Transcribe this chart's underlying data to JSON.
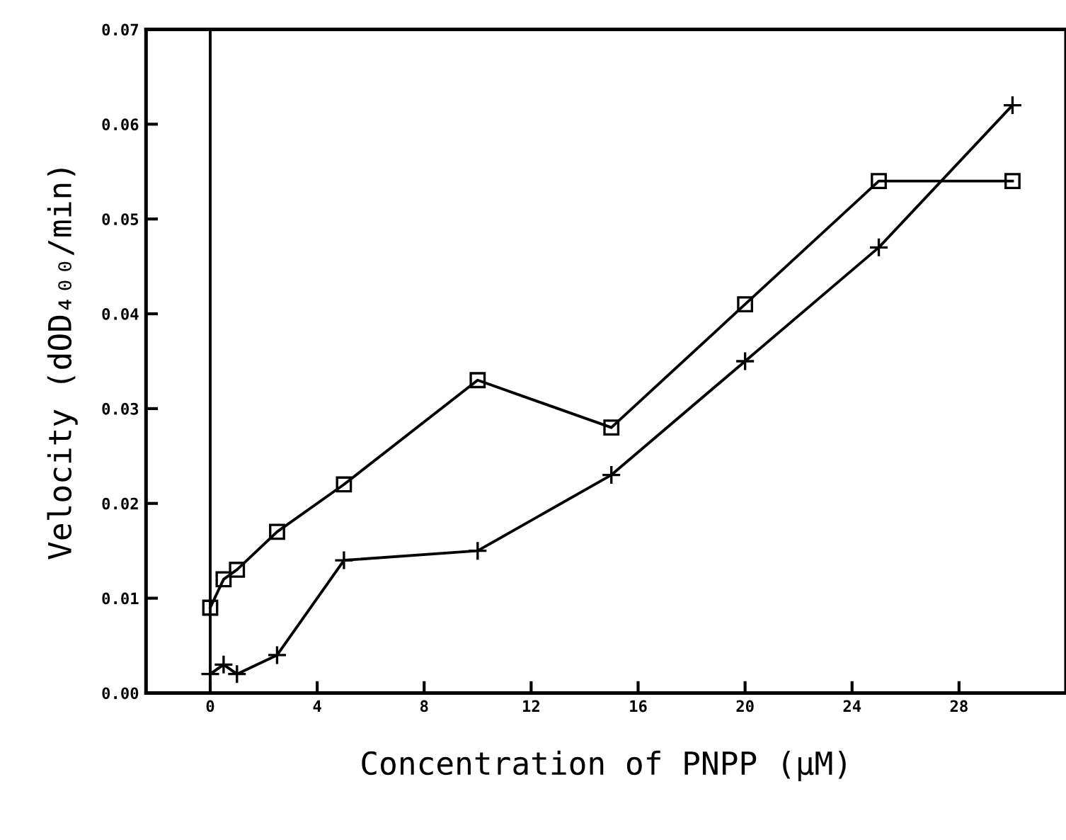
{
  "chart_data": {
    "type": "line",
    "xlabel": "Concentration of PNPP (µM)",
    "ylabel": "Velocity (dOD₄₀₀/min)",
    "x": [
      0,
      0.5,
      1,
      2.5,
      5,
      10,
      15,
      20,
      25,
      30
    ],
    "series": [
      {
        "color": "#000000",
        "marker": "square",
        "values": [
          0.009,
          0.012,
          0.013,
          0.017,
          0.022,
          0.033,
          0.028,
          0.041,
          0.054,
          0.054
        ]
      },
      {
        "color": "#000000",
        "marker": "cross",
        "values": [
          0.002,
          0.003,
          0.002,
          0.004,
          0.014,
          0.015,
          0.023,
          0.035,
          0.047,
          0.062
        ]
      }
    ],
    "xlim": [
      -2.4,
      32
    ],
    "xticks": [
      0,
      4,
      8,
      12,
      16,
      20,
      24,
      28
    ],
    "ylim": [
      0,
      0.07
    ],
    "yticks": [
      {
        "value": 0,
        "label": "0.00"
      },
      {
        "value": 0.01,
        "label": "0.01"
      },
      {
        "value": 0.02,
        "label": "0.02"
      },
      {
        "value": 0.03,
        "label": "0.03"
      },
      {
        "value": 0.04,
        "label": "0.04"
      },
      {
        "value": 0.05,
        "label": "0.05"
      },
      {
        "value": 0.06,
        "label": "0.06"
      },
      {
        "value": 0.07,
        "label": "0.07"
      }
    ],
    "ref_lines": [
      {
        "axis": "x",
        "value": 0,
        "color": "#000000"
      }
    ],
    "grid": false,
    "legend": false,
    "line_style": "solid"
  }
}
